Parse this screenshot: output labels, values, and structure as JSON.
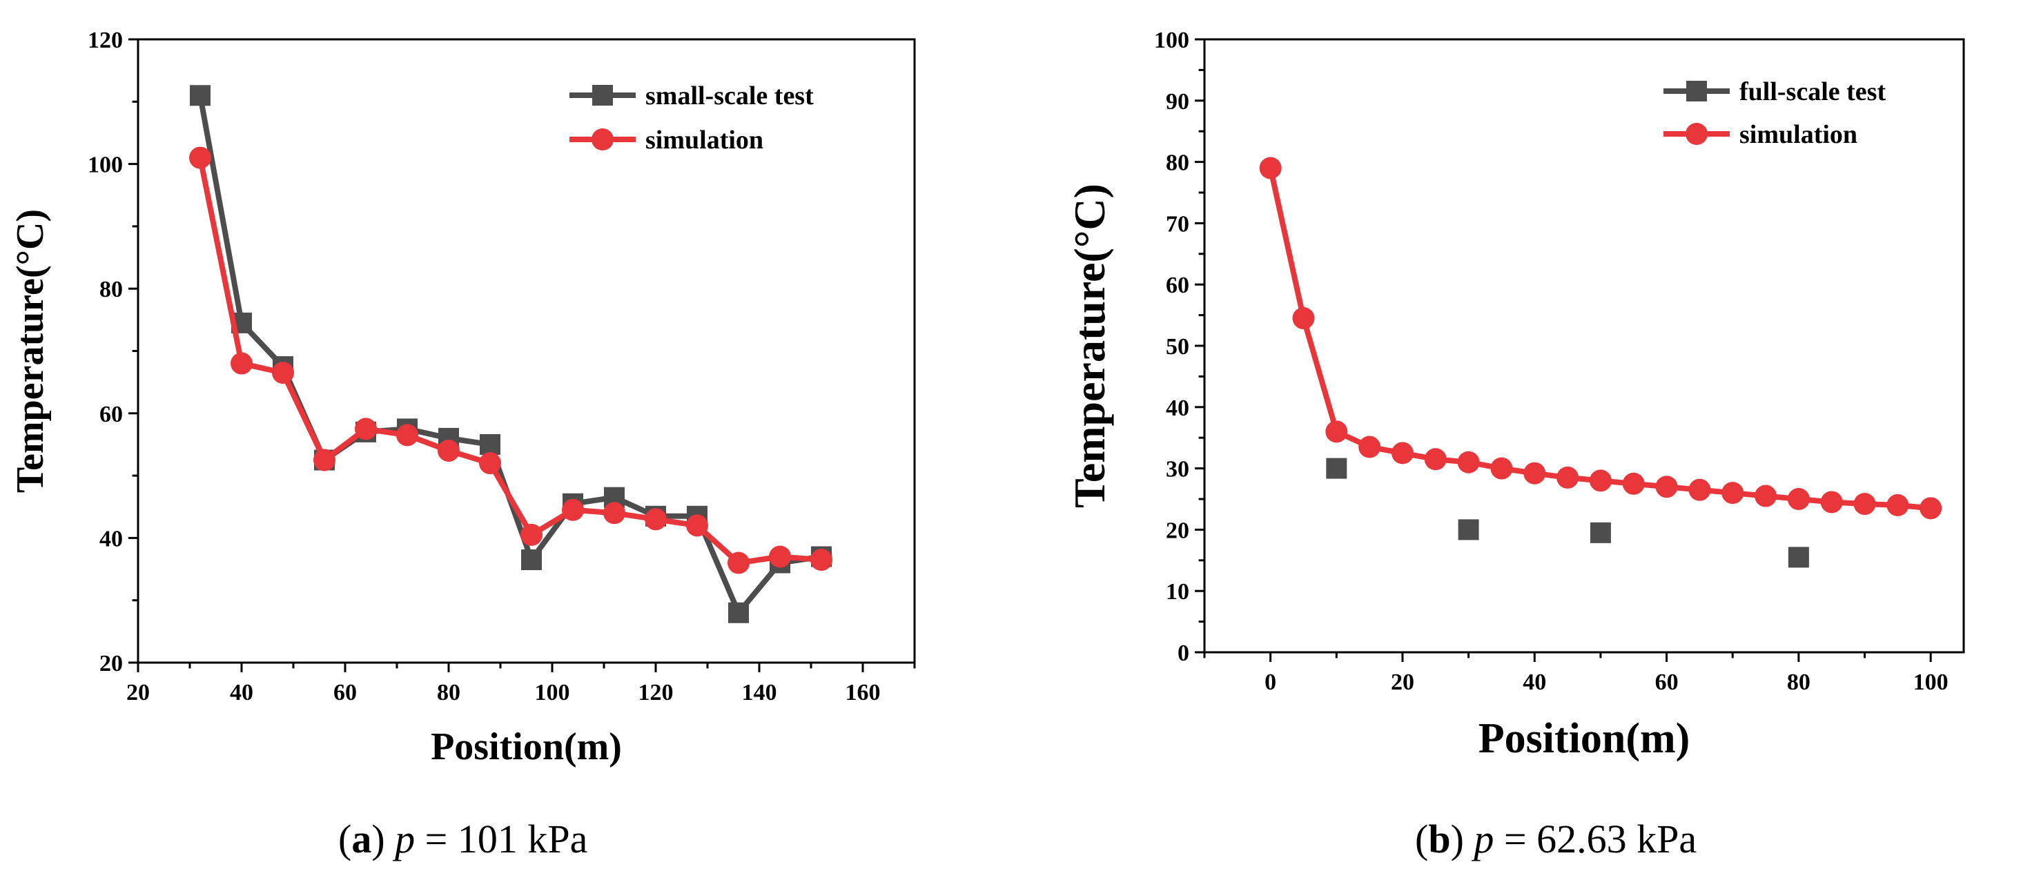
{
  "chart_data": [
    {
      "id": "a",
      "type": "line",
      "xlabel": "Position(m)",
      "ylabel": "Temperature(°C)",
      "xlim": [
        20,
        170
      ],
      "ylim": [
        20,
        120
      ],
      "xticks": [
        20,
        40,
        60,
        80,
        100,
        120,
        140,
        160
      ],
      "yticks": [
        20,
        40,
        60,
        80,
        100,
        120
      ],
      "x_tick_labels": [
        "20",
        "40",
        "60",
        "80",
        "100",
        "120",
        "140",
        "160"
      ],
      "y_tick_labels": [
        "20",
        "40",
        "60",
        "80",
        "100",
        "120"
      ],
      "legend_position": "top-right",
      "caption": {
        "label": "a",
        "var": "p",
        "rest": " = 101 kPa"
      },
      "series": [
        {
          "name": "small-scale test",
          "marker": "square",
          "color": "#4d4d4d",
          "line": true,
          "x": [
            32,
            40,
            48,
            56,
            64,
            72,
            80,
            88,
            96,
            104,
            112,
            120,
            128,
            136,
            144,
            152
          ],
          "y": [
            111,
            74.5,
            67.5,
            52.5,
            57,
            57.5,
            56,
            55,
            36.5,
            45.5,
            46.5,
            43.5,
            43.5,
            28,
            36,
            37
          ]
        },
        {
          "name": "simulation",
          "marker": "circle",
          "color": "#e8363a",
          "line": true,
          "x": [
            32,
            40,
            48,
            56,
            64,
            72,
            80,
            88,
            96,
            104,
            112,
            120,
            128,
            136,
            144,
            152
          ],
          "y": [
            101,
            68,
            66.5,
            52.5,
            57.5,
            56.5,
            54,
            52,
            40.5,
            44.5,
            44,
            43,
            42,
            36,
            37,
            36.5
          ]
        }
      ]
    },
    {
      "id": "b",
      "type": "line",
      "xlabel": "Position(m)",
      "ylabel": "Temperature(°C)",
      "xlim": [
        -10,
        105
      ],
      "ylim": [
        0,
        100
      ],
      "xticks": [
        0,
        20,
        40,
        60,
        80,
        100
      ],
      "yticks": [
        0,
        10,
        20,
        30,
        40,
        50,
        60,
        70,
        80,
        90,
        100
      ],
      "x_tick_labels": [
        "0",
        "20",
        "40",
        "60",
        "80",
        "100"
      ],
      "y_tick_labels": [
        "0",
        "10",
        "20",
        "30",
        "40",
        "50",
        "60",
        "70",
        "80",
        "90",
        "100"
      ],
      "legend_position": "top-right",
      "caption": {
        "label": "b",
        "var": "p",
        "rest": " = 62.63 kPa"
      },
      "series": [
        {
          "name": "full-scale test",
          "marker": "square",
          "color": "#4d4d4d",
          "line": false,
          "x": [
            10,
            30,
            50,
            80
          ],
          "y": [
            30,
            20,
            19.5,
            15.5
          ]
        },
        {
          "name": "simulation",
          "marker": "circle",
          "color": "#e8363a",
          "line": true,
          "x": [
            0,
            5,
            10,
            15,
            20,
            25,
            30,
            35,
            40,
            45,
            50,
            55,
            60,
            65,
            70,
            75,
            80,
            85,
            90,
            95,
            100
          ],
          "y": [
            79,
            54.5,
            36,
            33.5,
            32.5,
            31.5,
            31,
            30,
            29.2,
            28.5,
            28,
            27.5,
            27,
            26.5,
            26,
            25.5,
            25,
            24.5,
            24.2,
            24,
            23.5
          ]
        }
      ]
    }
  ]
}
